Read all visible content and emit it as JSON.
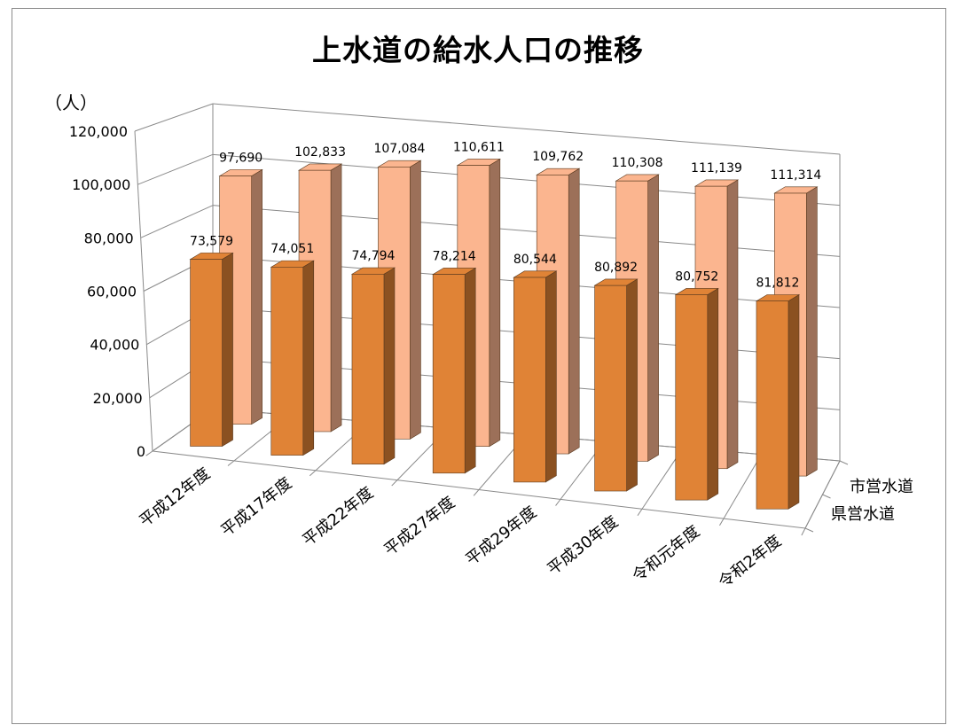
{
  "chart_data": {
    "type": "bar",
    "title": "上水道の給水人口の推移",
    "ylabel": "（人）",
    "ylim": [
      0,
      120000
    ],
    "yticks": [
      "0",
      "20,000",
      "40,000",
      "60,000",
      "80,000",
      "100,000",
      "120,000"
    ],
    "categories": [
      "平成12年度",
      "平成17年度",
      "平成22年度",
      "平成27年度",
      "平成29年度",
      "平成30年度",
      "令和元年度",
      "令和2年度"
    ],
    "series": [
      {
        "name": "市営水道",
        "values": [
          97690,
          102833,
          107084,
          110611,
          109762,
          110308,
          111139,
          111314
        ],
        "labels": [
          "97,690",
          "102,833",
          "107,084",
          "110,611",
          "109,762",
          "110,308",
          "111,139",
          "111,314"
        ],
        "color": "#fbb58f"
      },
      {
        "name": "県営水道",
        "values": [
          73579,
          74051,
          74794,
          78214,
          80544,
          80892,
          80752,
          81812
        ],
        "labels": [
          "73,579",
          "74,051",
          "74,794",
          "78,214",
          "80,544",
          "80,892",
          "80,752",
          "81,812"
        ],
        "color": "#e08336"
      }
    ],
    "grid": true,
    "style": "3d-column",
    "legend": "right"
  }
}
